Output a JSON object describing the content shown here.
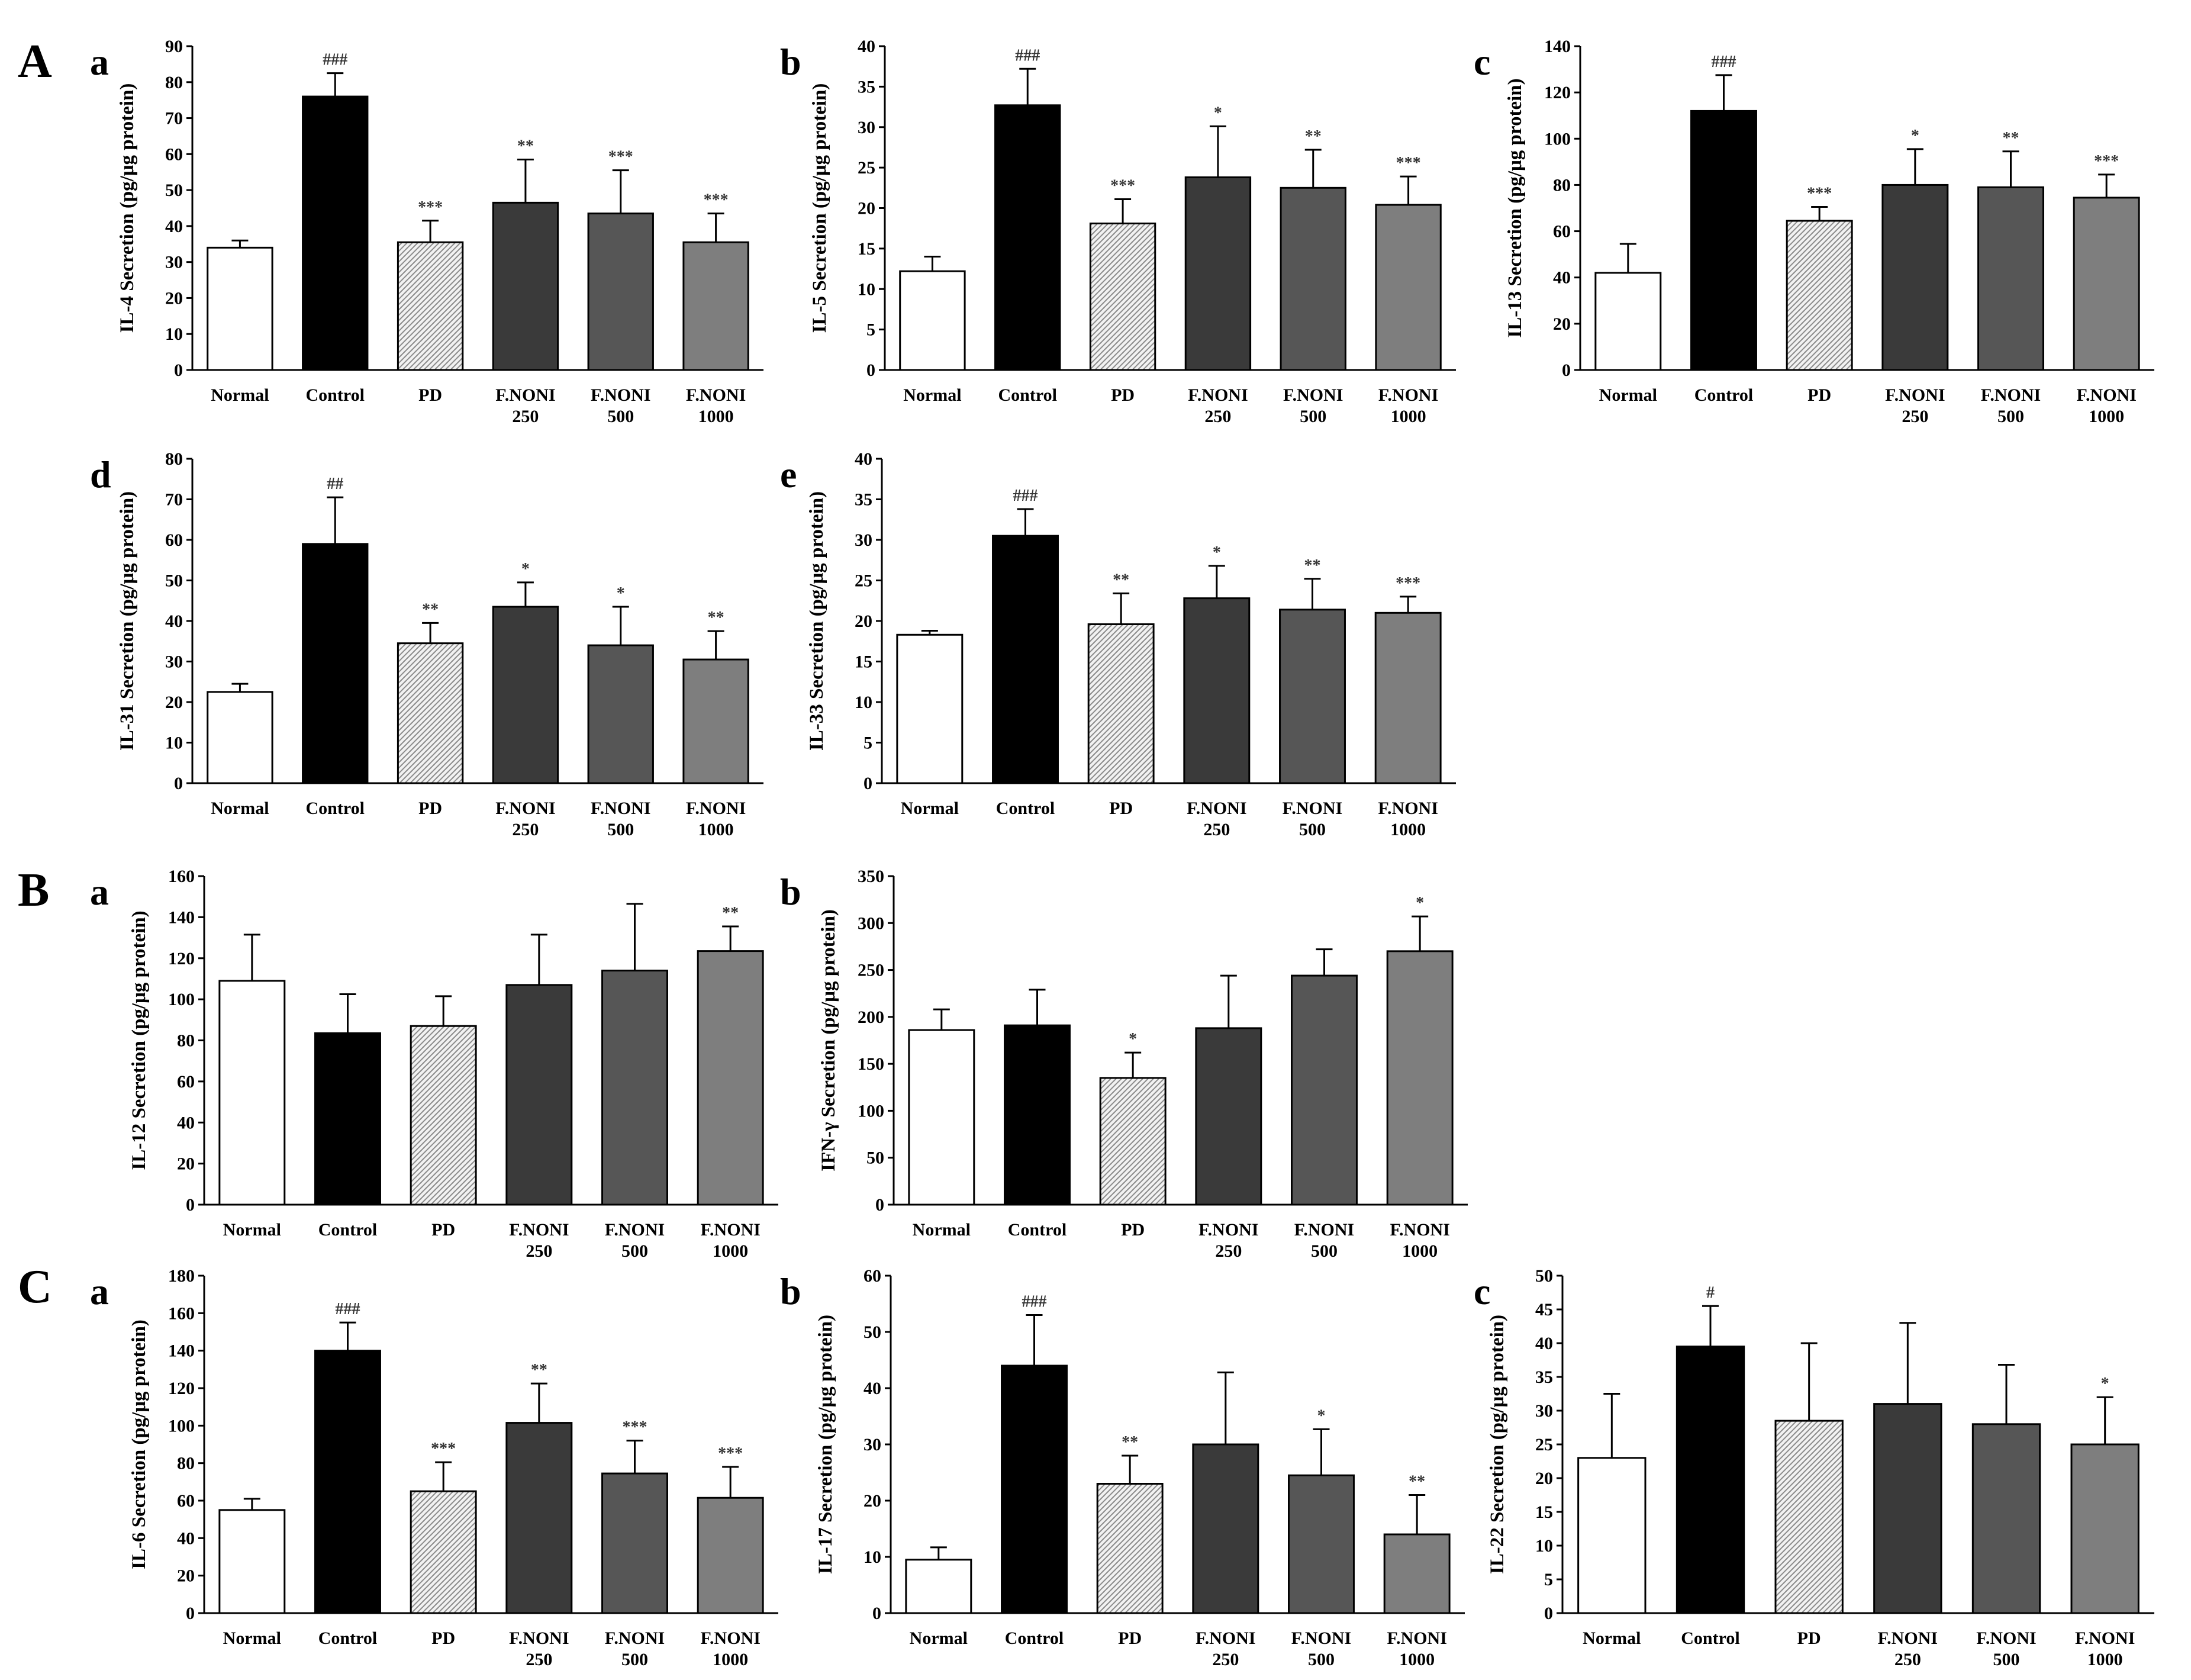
{
  "figure": {
    "groups": [
      {
        "id": "A",
        "label": "A"
      },
      {
        "id": "B",
        "label": "B"
      },
      {
        "id": "C",
        "label": "C"
      }
    ]
  },
  "chart_data": [
    {
      "id": "A-a",
      "group": "A",
      "panel": "a",
      "type": "bar",
      "ylabel": "IL-4 Secretion (pg/μg protein)",
      "ylim": [
        0,
        90
      ],
      "yticks": [
        0,
        10,
        20,
        30,
        40,
        50,
        60,
        70,
        80,
        90
      ],
      "categories": [
        [
          "Normal"
        ],
        [
          "Control"
        ],
        [
          "PD"
        ],
        [
          "F.NONI",
          "250"
        ],
        [
          "F.NONI",
          "500"
        ],
        [
          "F.NONI",
          "1000"
        ]
      ],
      "values": [
        34,
        76,
        35.5,
        46.5,
        43.5,
        35.5
      ],
      "errors": [
        2,
        6.5,
        6,
        12,
        12,
        8
      ],
      "annotations": [
        "",
        "###",
        "***",
        "**",
        "***",
        "***"
      ]
    },
    {
      "id": "A-b",
      "group": "A",
      "panel": "b",
      "type": "bar",
      "ylabel": "IL-5 Secretion (pg/μg protein)",
      "ylim": [
        0,
        40
      ],
      "yticks": [
        0,
        5,
        10,
        15,
        20,
        25,
        30,
        35,
        40
      ],
      "categories": [
        [
          "Normal"
        ],
        [
          "Control"
        ],
        [
          "PD"
        ],
        [
          "F.NONI",
          "250"
        ],
        [
          "F.NONI",
          "500"
        ],
        [
          "F.NONI",
          "1000"
        ]
      ],
      "values": [
        12.2,
        32.7,
        18.1,
        23.8,
        22.5,
        20.4
      ],
      "errors": [
        1.8,
        4.5,
        3,
        6.3,
        4.7,
        3.5
      ],
      "annotations": [
        "",
        "###",
        "***",
        "*",
        "**",
        "***"
      ]
    },
    {
      "id": "A-c",
      "group": "A",
      "panel": "c",
      "type": "bar",
      "ylabel": "IL-13 Secretion (pg/μg protein)",
      "ylim": [
        0,
        140
      ],
      "yticks": [
        0,
        20,
        40,
        60,
        80,
        100,
        120,
        140
      ],
      "categories": [
        [
          "Normal"
        ],
        [
          "Control"
        ],
        [
          "PD"
        ],
        [
          "F.NONI",
          "250"
        ],
        [
          "F.NONI",
          "500"
        ],
        [
          "F.NONI",
          "1000"
        ]
      ],
      "values": [
        42,
        112,
        64.5,
        80,
        79,
        74.5
      ],
      "errors": [
        12.5,
        15.5,
        6,
        15.5,
        15.5,
        10
      ],
      "annotations": [
        "",
        "###",
        "***",
        "*",
        "**",
        "***"
      ]
    },
    {
      "id": "A-d",
      "group": "A",
      "panel": "d",
      "type": "bar",
      "ylabel": "IL-31 Secretion (pg/μg protein)",
      "ylim": [
        0,
        80
      ],
      "yticks": [
        0,
        10,
        20,
        30,
        40,
        50,
        60,
        70,
        80
      ],
      "categories": [
        [
          "Normal"
        ],
        [
          "Control"
        ],
        [
          "PD"
        ],
        [
          "F.NONI",
          "250"
        ],
        [
          "F.NONI",
          "500"
        ],
        [
          "F.NONI",
          "1000"
        ]
      ],
      "values": [
        22.5,
        59,
        34.5,
        43.5,
        34,
        30.5
      ],
      "errors": [
        2,
        11.5,
        5,
        6,
        9.5,
        7
      ],
      "annotations": [
        "",
        "##",
        "**",
        "*",
        "*",
        "**"
      ]
    },
    {
      "id": "A-e",
      "group": "A",
      "panel": "e",
      "type": "bar",
      "ylabel": "IL-33 Secretion (pg/μg protein)",
      "ylim": [
        0,
        40
      ],
      "yticks": [
        0,
        5,
        10,
        15,
        20,
        25,
        30,
        35,
        40
      ],
      "categories": [
        [
          "Normal"
        ],
        [
          "Control"
        ],
        [
          "PD"
        ],
        [
          "F.NONI",
          "250"
        ],
        [
          "F.NONI",
          "500"
        ],
        [
          "F.NONI",
          "1000"
        ]
      ],
      "values": [
        18.3,
        30.5,
        19.6,
        22.8,
        21.4,
        21
      ],
      "errors": [
        0.5,
        3.3,
        3.8,
        4,
        3.8,
        2
      ],
      "annotations": [
        "",
        "###",
        "**",
        "*",
        "**",
        "***"
      ]
    },
    {
      "id": "B-a",
      "group": "B",
      "panel": "a",
      "type": "bar",
      "ylabel": "IL-12 Secretion (pg/μg protein)",
      "ylim": [
        0,
        160
      ],
      "yticks": [
        0,
        20,
        40,
        60,
        80,
        100,
        120,
        140,
        160
      ],
      "categories": [
        [
          "Normal"
        ],
        [
          "Control"
        ],
        [
          "PD"
        ],
        [
          "F.NONI",
          "250"
        ],
        [
          "F.NONI",
          "500"
        ],
        [
          "F.NONI",
          "1000"
        ]
      ],
      "values": [
        109,
        83.5,
        87,
        107,
        114,
        123.5
      ],
      "errors": [
        22.5,
        19,
        14.5,
        24.5,
        32.5,
        12
      ],
      "annotations": [
        "",
        "",
        "",
        "",
        "",
        "**"
      ]
    },
    {
      "id": "B-b",
      "group": "B",
      "panel": "b",
      "type": "bar",
      "ylabel": "IFN-γ Secretion (pg/μg protein)",
      "ylim": [
        0,
        350
      ],
      "yticks": [
        0,
        50,
        100,
        150,
        200,
        250,
        300,
        350
      ],
      "categories": [
        [
          "Normal"
        ],
        [
          "Control"
        ],
        [
          "PD"
        ],
        [
          "F.NONI",
          "250"
        ],
        [
          "F.NONI",
          "500"
        ],
        [
          "F.NONI",
          "1000"
        ]
      ],
      "values": [
        186,
        191,
        135,
        188,
        244,
        270
      ],
      "errors": [
        22,
        38,
        27,
        56,
        28,
        37
      ],
      "annotations": [
        "",
        "",
        "*",
        "",
        "",
        "*"
      ]
    },
    {
      "id": "C-a",
      "group": "C",
      "panel": "a",
      "type": "bar",
      "ylabel": "IL-6 Secretion (pg/μg protein)",
      "ylim": [
        0,
        180
      ],
      "yticks": [
        0,
        20,
        40,
        60,
        80,
        100,
        120,
        140,
        160,
        180
      ],
      "categories": [
        [
          "Normal"
        ],
        [
          "Control"
        ],
        [
          "PD"
        ],
        [
          "F.NONI",
          "250"
        ],
        [
          "F.NONI",
          "500"
        ],
        [
          "F.NONI",
          "1000"
        ]
      ],
      "values": [
        55,
        140,
        65,
        101.5,
        74.5,
        61.5
      ],
      "errors": [
        6,
        15,
        15.5,
        21,
        17.5,
        16.5
      ],
      "annotations": [
        "",
        "###",
        "***",
        "**",
        "***",
        "***"
      ]
    },
    {
      "id": "C-b",
      "group": "C",
      "panel": "b",
      "type": "bar",
      "ylabel": "IL-17 Secretion (pg/μg protein)",
      "ylim": [
        0,
        60
      ],
      "yticks": [
        0,
        10,
        20,
        30,
        40,
        50,
        60
      ],
      "categories": [
        [
          "Normal"
        ],
        [
          "Control"
        ],
        [
          "PD"
        ],
        [
          "F.NONI",
          "250"
        ],
        [
          "F.NONI",
          "500"
        ],
        [
          "F.NONI",
          "1000"
        ]
      ],
      "values": [
        9.5,
        44,
        23,
        30,
        24.5,
        14
      ],
      "errors": [
        2.2,
        9,
        5,
        12.8,
        8.2,
        7
      ],
      "annotations": [
        "",
        "###",
        "**",
        "",
        "*",
        "**"
      ]
    },
    {
      "id": "C-c",
      "group": "C",
      "panel": "c",
      "type": "bar",
      "ylabel": "IL-22 Secretion (pg/μg protein)",
      "ylim": [
        0,
        50
      ],
      "yticks": [
        0,
        5,
        10,
        15,
        20,
        25,
        30,
        35,
        40,
        45,
        50
      ],
      "categories": [
        [
          "Normal"
        ],
        [
          "Control"
        ],
        [
          "PD"
        ],
        [
          "F.NONI",
          "250"
        ],
        [
          "F.NONI",
          "500"
        ],
        [
          "F.NONI",
          "1000"
        ]
      ],
      "values": [
        23,
        39.5,
        28.5,
        31,
        28,
        25
      ],
      "errors": [
        9.5,
        6,
        11.5,
        12,
        8.8,
        7
      ],
      "annotations": [
        "",
        "#",
        "",
        "",
        "",
        "*"
      ]
    }
  ],
  "bar_styles": {
    "fills": [
      "#ffffff",
      "#000000",
      "pattern",
      "#3a3a3a",
      "#565656",
      "#7e7e7e"
    ],
    "pattern_background": "#f2f2f2",
    "pattern_line": "#8a8a8a",
    "stroke": "#000000"
  }
}
